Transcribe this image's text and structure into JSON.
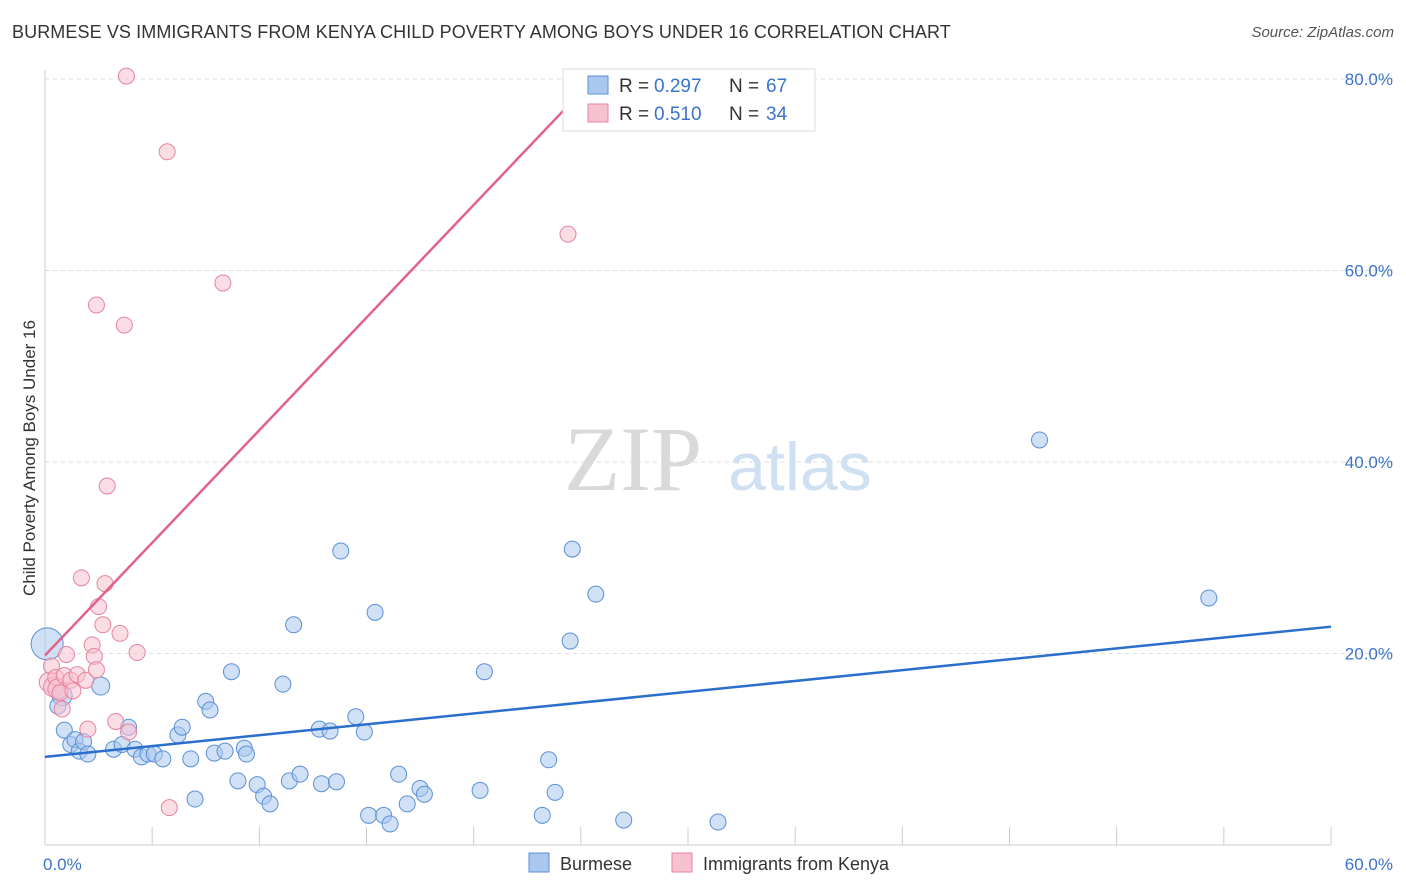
{
  "title": "BURMESE VS IMMIGRANTS FROM KENYA CHILD POVERTY AMONG BOYS UNDER 16 CORRELATION CHART",
  "source": "Source: ZipAtlas.com",
  "watermark": {
    "zip": "ZIP",
    "atlas": "atlas"
  },
  "colors": {
    "burmese_fill": "#aac8ef",
    "burmese_stroke": "#5b8fd6",
    "burmese_line": "#2a6fcc",
    "kenya_fill": "#f6c1d0",
    "kenya_stroke": "#e8839f",
    "kenya_line": "#e3628a",
    "value_text": "#3a73c9",
    "grid": "#dcdcdc"
  },
  "legend": {
    "rows": [
      {
        "r_label": "R = ",
        "r_value": "0.297",
        "n_label": "N = ",
        "n_value": "67"
      },
      {
        "r_label": "R = ",
        "r_value": "0.510",
        "n_label": "N = ",
        "n_value": "34"
      }
    ]
  },
  "bottom_legend": {
    "items": [
      "Burmese",
      "Immigrants from Kenya"
    ]
  },
  "chart_data": {
    "type": "scatter",
    "title": "BURMESE VS IMMIGRANTS FROM KENYA CHILD POVERTY AMONG BOYS UNDER 16 CORRELATION CHART",
    "xlabel": "",
    "ylabel": "Child Poverty Among Boys Under 16",
    "xlim": [
      0,
      60
    ],
    "ylim": [
      0,
      80
    ],
    "x_tick_labels": [
      "0.0%",
      "60.0%"
    ],
    "y_tick_values": [
      20,
      40,
      60,
      80
    ],
    "y_tick_labels": [
      "20.0%",
      "40.0%",
      "60.0%",
      "80.0%"
    ],
    "grid": true,
    "series": [
      {
        "name": "Burmese",
        "R": 0.297,
        "N": 67,
        "trend": {
          "x": [
            0,
            60
          ],
          "y": [
            9.2,
            22.8
          ]
        },
        "points": [
          [
            0.1,
            21.0,
            16
          ],
          [
            0.8,
            15.6,
            10
          ],
          [
            0.6,
            14.5,
            8
          ],
          [
            0.9,
            12.0,
            8
          ],
          [
            1.2,
            10.5,
            8
          ],
          [
            1.4,
            11.0,
            8
          ],
          [
            1.6,
            9.8,
            8
          ],
          [
            1.8,
            10.8,
            8
          ],
          [
            2.0,
            9.5,
            8
          ],
          [
            2.6,
            16.6,
            9
          ],
          [
            3.2,
            10.0,
            8
          ],
          [
            3.6,
            10.5,
            8
          ],
          [
            3.9,
            12.3,
            8
          ],
          [
            4.2,
            10.0,
            8
          ],
          [
            4.5,
            9.2,
            8
          ],
          [
            4.8,
            9.5,
            8
          ],
          [
            5.1,
            9.5,
            8
          ],
          [
            5.5,
            9.0,
            8
          ],
          [
            6.2,
            11.5,
            8
          ],
          [
            6.4,
            12.3,
            8
          ],
          [
            6.8,
            9.0,
            8
          ],
          [
            7.0,
            4.8,
            8
          ],
          [
            7.5,
            15.0,
            8
          ],
          [
            7.7,
            14.1,
            8
          ],
          [
            7.9,
            9.6,
            8
          ],
          [
            8.4,
            9.8,
            8
          ],
          [
            8.7,
            18.1,
            8
          ],
          [
            9.0,
            6.7,
            8
          ],
          [
            9.3,
            10.1,
            8
          ],
          [
            9.4,
            9.5,
            8
          ],
          [
            9.9,
            6.3,
            8
          ],
          [
            10.2,
            5.1,
            8
          ],
          [
            10.5,
            4.3,
            8
          ],
          [
            11.1,
            16.8,
            8
          ],
          [
            11.4,
            6.7,
            8
          ],
          [
            11.6,
            23.0,
            8
          ],
          [
            11.9,
            7.4,
            8
          ],
          [
            12.8,
            12.1,
            8
          ],
          [
            12.9,
            6.4,
            8
          ],
          [
            13.3,
            11.9,
            8
          ],
          [
            13.6,
            6.6,
            8
          ],
          [
            13.8,
            30.7,
            8
          ],
          [
            14.5,
            13.4,
            8
          ],
          [
            14.9,
            11.8,
            8
          ],
          [
            15.1,
            3.1,
            8
          ],
          [
            15.4,
            24.3,
            8
          ],
          [
            15.8,
            3.1,
            8
          ],
          [
            16.1,
            2.2,
            8
          ],
          [
            16.5,
            7.4,
            8
          ],
          [
            16.9,
            4.3,
            8
          ],
          [
            17.5,
            5.9,
            8
          ],
          [
            17.7,
            5.3,
            8
          ],
          [
            20.5,
            18.1,
            8
          ],
          [
            20.3,
            5.7,
            8
          ],
          [
            23.2,
            3.1,
            8
          ],
          [
            23.5,
            8.9,
            8
          ],
          [
            23.8,
            5.5,
            8
          ],
          [
            24.5,
            21.3,
            8
          ],
          [
            24.6,
            30.9,
            8
          ],
          [
            25.7,
            26.2,
            8
          ],
          [
            27.0,
            2.6,
            8
          ],
          [
            31.4,
            2.4,
            8
          ],
          [
            46.4,
            42.3,
            8
          ],
          [
            54.3,
            25.8,
            8
          ]
        ]
      },
      {
        "name": "Immigrants from Kenya",
        "R": 0.51,
        "N": 34,
        "trend": {
          "x": [
            0,
            24.4
          ],
          "y": [
            19.8,
            77.2
          ]
        },
        "points": [
          [
            0.2,
            17.0,
            10
          ],
          [
            0.3,
            18.7,
            8
          ],
          [
            0.4,
            16.5,
            10
          ],
          [
            0.5,
            17.5,
            8
          ],
          [
            0.6,
            16.3,
            10
          ],
          [
            0.7,
            15.9,
            8
          ],
          [
            0.8,
            14.2,
            8
          ],
          [
            0.9,
            17.7,
            8
          ],
          [
            1.0,
            19.9,
            8
          ],
          [
            1.2,
            17.2,
            8
          ],
          [
            1.3,
            16.1,
            8
          ],
          [
            1.5,
            17.8,
            8
          ],
          [
            1.7,
            27.9,
            8
          ],
          [
            1.9,
            17.2,
            8
          ],
          [
            2.0,
            12.1,
            8
          ],
          [
            2.2,
            20.9,
            8
          ],
          [
            2.3,
            19.7,
            8
          ],
          [
            2.4,
            18.3,
            8
          ],
          [
            2.5,
            24.9,
            8
          ],
          [
            2.7,
            23.0,
            8
          ],
          [
            2.8,
            27.3,
            8
          ],
          [
            2.9,
            37.5,
            8
          ],
          [
            3.3,
            12.9,
            8
          ],
          [
            3.5,
            22.1,
            8
          ],
          [
            3.9,
            11.8,
            8
          ],
          [
            4.3,
            20.1,
            8
          ],
          [
            2.4,
            56.4,
            8
          ],
          [
            3.7,
            54.3,
            8
          ],
          [
            3.8,
            80.3,
            8
          ],
          [
            5.7,
            72.4,
            8
          ],
          [
            8.3,
            58.7,
            8
          ],
          [
            24.4,
            63.8,
            8
          ],
          [
            5.8,
            3.9,
            8
          ]
        ]
      }
    ]
  }
}
